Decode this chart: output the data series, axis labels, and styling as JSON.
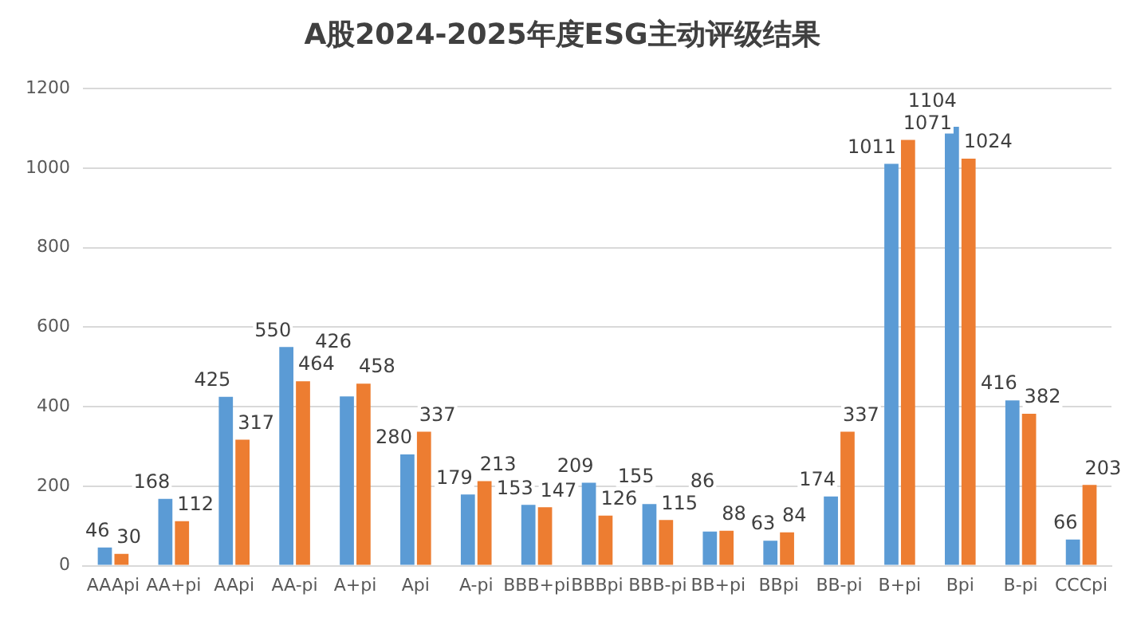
{
  "chart_data": {
    "type": "bar",
    "title": "A股2024-2025年度ESG主动评级结果",
    "categories": [
      "AAApi",
      "AA+pi",
      "AApi",
      "AA-pi",
      "A+pi",
      "Api",
      "A-pi",
      "BBB+pi",
      "BBBpi",
      "BBB-pi",
      "BB+pi",
      "BBpi",
      "BB-pi",
      "B+pi",
      "Bpi",
      "B-pi",
      "CCCpi"
    ],
    "series": [
      {
        "color": "#5b9bd5",
        "values": [
          46,
          168,
          425,
          550,
          426,
          280,
          179,
          153,
          209,
          155,
          86,
          63,
          174,
          1011,
          1104,
          416,
          66
        ]
      },
      {
        "color": "#ed7d31",
        "values": [
          30,
          112,
          317,
          464,
          458,
          337,
          213,
          147,
          126,
          115,
          88,
          84,
          337,
          1071,
          1024,
          382,
          203
        ]
      }
    ],
    "ylim": [
      0,
      1200
    ],
    "yticks": [
      0,
      200,
      400,
      600,
      800,
      1000,
      1200
    ],
    "grid": "y",
    "data_labels": true
  }
}
